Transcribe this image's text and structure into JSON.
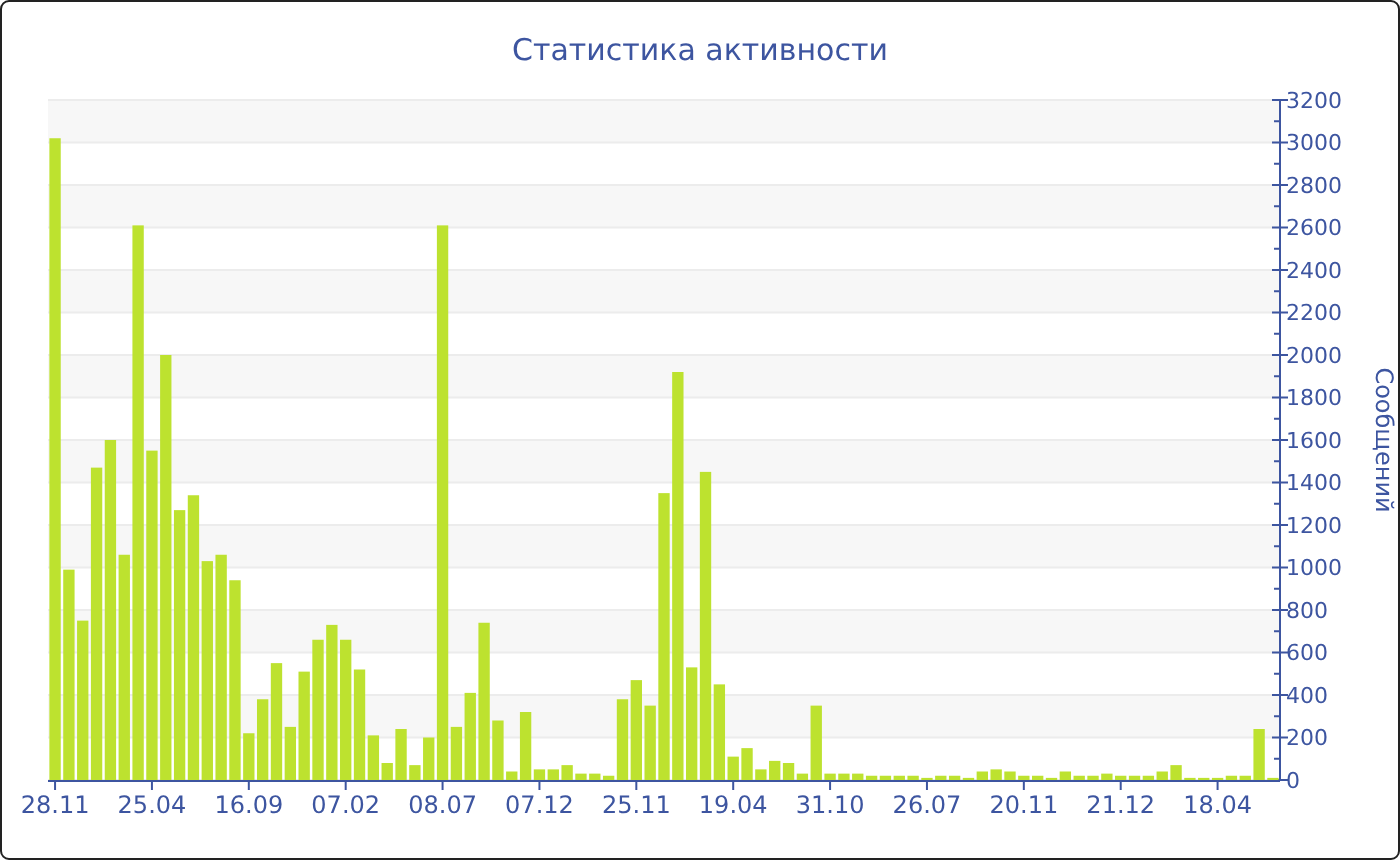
{
  "chart_data": {
    "type": "bar",
    "title": "Статистика активности",
    "ylabel": "Сообщений",
    "categories": [
      "28.11",
      null,
      null,
      null,
      null,
      null,
      null,
      "25.04",
      null,
      null,
      null,
      null,
      null,
      null,
      "16.09",
      null,
      null,
      null,
      null,
      null,
      null,
      "07.02",
      null,
      null,
      null,
      null,
      null,
      null,
      "08.07",
      null,
      null,
      null,
      null,
      null,
      null,
      "07.12",
      null,
      null,
      null,
      null,
      null,
      null,
      "25.11",
      null,
      null,
      null,
      null,
      null,
      null,
      "19.04",
      null,
      null,
      null,
      null,
      null,
      null,
      "31.10",
      null,
      null,
      null,
      null,
      null,
      null,
      "26.07",
      null,
      null,
      null,
      null,
      null,
      null,
      "20.11",
      null,
      null,
      null,
      null,
      null,
      null,
      "21.12",
      null,
      null,
      null,
      null,
      null,
      null,
      "18.04",
      null,
      null,
      null,
      null
    ],
    "values": [
      3020,
      990,
      750,
      1470,
      1600,
      1060,
      2610,
      1550,
      2000,
      1270,
      1340,
      1030,
      1060,
      940,
      220,
      380,
      550,
      250,
      510,
      660,
      730,
      660,
      520,
      210,
      80,
      240,
      70,
      200,
      2610,
      250,
      410,
      740,
      280,
      40,
      320,
      50,
      50,
      70,
      30,
      30,
      20,
      380,
      470,
      350,
      1350,
      1920,
      530,
      1450,
      450,
      110,
      150,
      50,
      90,
      80,
      30,
      350,
      30,
      30,
      30,
      20,
      20,
      20,
      20,
      10,
      20,
      20,
      10,
      40,
      50,
      40,
      20,
      20,
      10,
      40,
      20,
      20,
      30,
      20,
      20,
      20,
      40,
      70,
      10,
      10,
      10,
      20,
      20,
      240,
      10
    ],
    "color": "#bde22f",
    "ylim": [
      0,
      3200
    ],
    "yticks": [
      0,
      {
        "value": 100,
        "label": null
      },
      200,
      {
        "value": 300,
        "label": null
      },
      400,
      {
        "value": 500,
        "label": null
      },
      600,
      {
        "value": 700,
        "label": null
      },
      800,
      {
        "value": 900,
        "label": null
      },
      1000,
      {
        "value": 1100,
        "label": null
      },
      1200,
      {
        "value": 1300,
        "label": null
      },
      1400,
      {
        "value": 1500,
        "label": null
      },
      1600,
      {
        "value": 1700,
        "label": null
      },
      1800,
      {
        "value": 1900,
        "label": null
      },
      2000,
      {
        "value": 2100,
        "label": null
      },
      2200,
      {
        "value": 2300,
        "label": null
      },
      2400,
      {
        "value": 2500,
        "label": null
      },
      2600,
      {
        "value": 2700,
        "label": null
      },
      2800,
      {
        "value": 2900,
        "label": null
      },
      3000,
      {
        "value": 3100,
        "label": null
      },
      3200
    ],
    "grid": "y"
  }
}
